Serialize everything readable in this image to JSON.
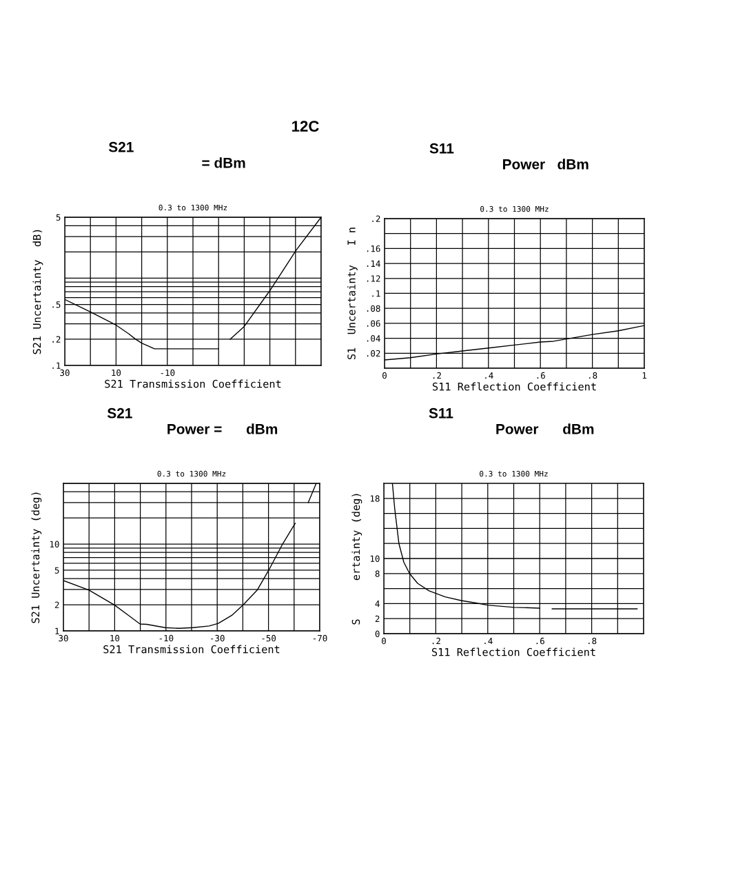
{
  "chart_data": [
    {
      "type": "line",
      "title": "S21",
      "subtitle": "= dBm",
      "annotations": [
        "12C",
        "0.3 to 1300 MHz"
      ],
      "xlabel": "S21 Transmission Coefficient",
      "ylabel": "S21 Uncertainty  dB)",
      "log": "y",
      "grid": true,
      "marker": "none",
      "line_style": "solid",
      "legend": false,
      "xlim": [
        30,
        -70
      ],
      "xticks": [
        30,
        {
          "value": 20,
          "label": null
        },
        10,
        {
          "value": 0,
          "label": null
        },
        -10,
        {
          "value": -20,
          "label": null
        },
        {
          "value": -30,
          "label": null
        },
        {
          "value": -40,
          "label": null
        },
        {
          "value": -50,
          "label": null
        },
        {
          "value": -60,
          "label": null
        },
        {
          "value": -70,
          "label": null
        }
      ],
      "ylim": [
        0.1,
        5
      ],
      "yticks": [
        {
          "value": 0.1,
          "label": ".1"
        },
        {
          "value": 0.2,
          "label": ".2"
        },
        {
          "value": 0.3,
          "label": null
        },
        {
          "value": 0.4,
          "label": null
        },
        {
          "value": 0.5,
          "label": ".5"
        },
        {
          "value": 0.6,
          "label": null
        },
        {
          "value": 0.7,
          "label": null
        },
        {
          "value": 0.8,
          "label": null
        },
        {
          "value": 0.9,
          "label": null
        },
        {
          "value": 1,
          "label": null
        },
        {
          "value": 2,
          "label": null
        },
        {
          "value": 3,
          "label": null
        },
        {
          "value": 4,
          "label": null
        },
        5
      ],
      "series": [
        {
          "color": "#000000",
          "x": [
            30,
            20,
            10,
            5,
            2.4,
            0,
            -5,
            -30,
            -32,
            -34.5,
            -40,
            -50,
            -60.3,
            -70
          ],
          "values": [
            0.57,
            0.41,
            0.29,
            0.23,
            0.2,
            0.18,
            0.155,
            0.155,
            null,
            0.2,
            0.28,
            0.72,
            2.1,
            5
          ]
        }
      ]
    },
    {
      "type": "line",
      "title": "S11",
      "subtitle": "Power   dBm",
      "annotations": [
        "0.3 to 1300 MHz"
      ],
      "xlabel": "S11 Reflection Coefficient",
      "ylabel": "S1  Uncertainty   I n",
      "grid": true,
      "marker": "none",
      "line_style": "solid",
      "legend": false,
      "xlim": [
        0,
        1
      ],
      "xticks": [
        {
          "value": 0,
          "label": "0"
        },
        {
          "value": 0.1,
          "label": null
        },
        {
          "value": 0.2,
          "label": ".2"
        },
        {
          "value": 0.3,
          "label": null
        },
        {
          "value": 0.4,
          "label": ".4"
        },
        {
          "value": 0.5,
          "label": null
        },
        {
          "value": 0.6,
          "label": ".6"
        },
        {
          "value": 0.7,
          "label": null
        },
        {
          "value": 0.8,
          "label": ".8"
        },
        {
          "value": 0.9,
          "label": null
        },
        1
      ],
      "ylim": [
        0,
        0.2
      ],
      "yticks": [
        {
          "value": 0,
          "label": null
        },
        {
          "value": 0.02,
          "label": ".02"
        },
        {
          "value": 0.04,
          "label": ".04"
        },
        {
          "value": 0.06,
          "label": ".06"
        },
        {
          "value": 0.08,
          "label": ".08"
        },
        {
          "value": 0.1,
          "label": ".1"
        },
        {
          "value": 0.12,
          "label": ".12"
        },
        {
          "value": 0.14,
          "label": ".14"
        },
        {
          "value": 0.16,
          "label": ".16"
        },
        {
          "value": 0.18,
          "label": null
        },
        {
          "value": 0.2,
          "label": ".2"
        }
      ],
      "series": [
        {
          "color": "#000000",
          "x": [
            0,
            0.1,
            0.2,
            0.3,
            0.4,
            0.5,
            0.6,
            0.65,
            0.7,
            0.8,
            0.9,
            1
          ],
          "values": [
            0.011,
            0.014,
            0.019,
            0.023,
            0.027,
            0.031,
            0.035,
            0.036,
            0.039,
            0.045,
            0.05,
            0.057
          ]
        }
      ]
    },
    {
      "type": "line",
      "title": "S21",
      "subtitle": "Power =      dBm",
      "annotations": [
        "0.3 to 1300 MHz"
      ],
      "xlabel": "S21 Transmission Coefficient",
      "ylabel": "S21 Uncertainty (deg)",
      "log": "y",
      "grid": true,
      "marker": "none",
      "line_style": "solid",
      "legend": false,
      "xlim": [
        30,
        -70
      ],
      "xticks": [
        30,
        {
          "value": 20,
          "label": null
        },
        10,
        {
          "value": 0,
          "label": null
        },
        -10,
        {
          "value": -20,
          "label": null
        },
        -30,
        {
          "value": -40,
          "label": null
        },
        -50,
        {
          "value": -60,
          "label": null
        },
        -70
      ],
      "ylim": [
        1,
        50
      ],
      "yticks": [
        1,
        2,
        {
          "value": 3,
          "label": null
        },
        {
          "value": 4,
          "label": null
        },
        5,
        {
          "value": 6,
          "label": null
        },
        {
          "value": 7,
          "label": null
        },
        {
          "value": 8,
          "label": null
        },
        {
          "value": 9,
          "label": null
        },
        10,
        {
          "value": 20,
          "label": null
        },
        {
          "value": 30,
          "label": null
        },
        {
          "value": 40,
          "label": null
        },
        {
          "value": 50,
          "label": null
        }
      ],
      "series": [
        {
          "color": "#000000",
          "x": [
            30,
            20,
            10,
            4.6,
            0.1,
            -2.6,
            -9.7,
            -15.1,
            -20.5,
            -26.8,
            -30.4,
            -35.7,
            -40.2,
            -45.6,
            -50.1,
            -55.5,
            -60.4,
            -63,
            -65.5,
            -68.5
          ],
          "values": [
            3.8,
            2.95,
            1.98,
            1.51,
            1.2,
            1.19,
            1.09,
            1.07,
            1.09,
            1.14,
            1.22,
            1.51,
            2.0,
            2.95,
            5.0,
            10,
            17.3,
            null,
            30,
            49
          ]
        }
      ]
    },
    {
      "type": "line",
      "title": "S11",
      "subtitle": "Power      dBm",
      "annotations": [
        "0.3 to 1300 MHz"
      ],
      "xlabel": "S11 Reflection Coefficient",
      "ylabel": "S      ertainty (deg)",
      "grid": true,
      "marker": "none",
      "line_style": "solid",
      "legend": false,
      "xlim": [
        0,
        1
      ],
      "xticks": [
        {
          "value": 0,
          "label": "0"
        },
        {
          "value": 0.1,
          "label": null
        },
        {
          "value": 0.2,
          "label": ".2"
        },
        {
          "value": 0.3,
          "label": null
        },
        {
          "value": 0.4,
          "label": ".4"
        },
        {
          "value": 0.5,
          "label": null
        },
        {
          "value": 0.6,
          "label": ".6"
        },
        {
          "value": 0.7,
          "label": null
        },
        {
          "value": 0.8,
          "label": ".8"
        },
        {
          "value": 0.9,
          "label": null
        },
        {
          "value": 1,
          "label": null
        }
      ],
      "ylim": [
        0,
        20
      ],
      "yticks": [
        0,
        2,
        4,
        {
          "value": 6,
          "label": null
        },
        8,
        10,
        {
          "value": 12,
          "label": null
        },
        {
          "value": 14,
          "label": null
        },
        {
          "value": 16,
          "label": null
        },
        18
      ],
      "series": [
        {
          "color": "#000000",
          "x": [
            0.033,
            0.042,
            0.058,
            0.077,
            0.099,
            0.13,
            0.174,
            0.236,
            0.298,
            0.351,
            0.4,
            0.502,
            0.6,
            0.62,
            0.648,
            0.975
          ],
          "values": [
            20,
            16.6,
            12.0,
            9.5,
            8.0,
            6.7,
            5.7,
            4.9,
            4.4,
            4.1,
            3.8,
            3.5,
            3.4,
            null,
            3.3,
            3.3
          ]
        }
      ]
    }
  ]
}
